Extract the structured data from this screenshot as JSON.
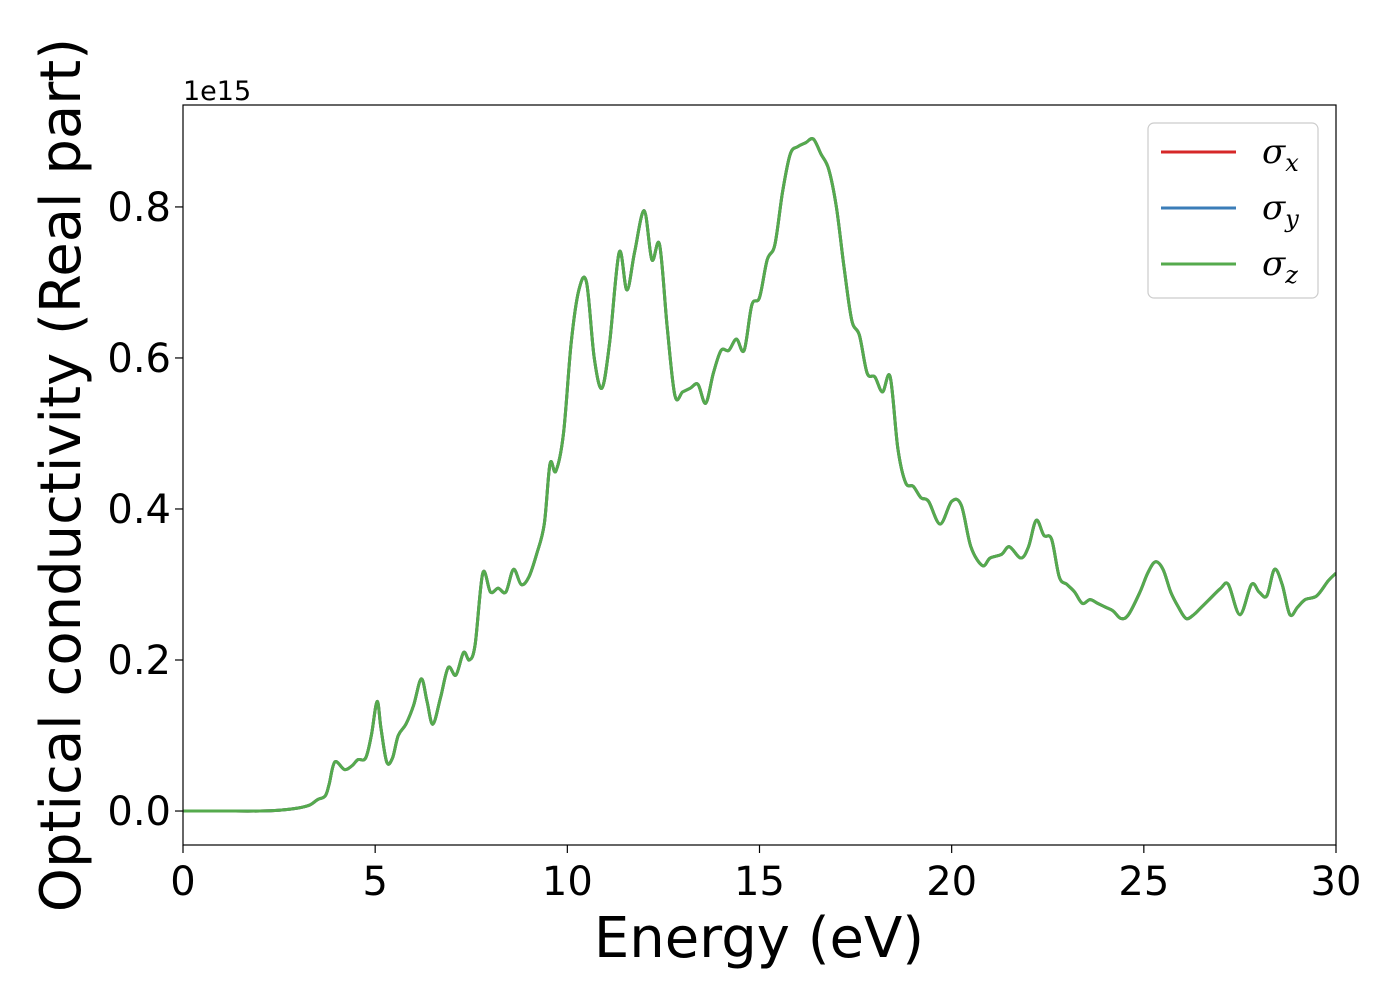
{
  "chart_data": {
    "type": "line",
    "title": "",
    "xlabel": "Energy (eV)",
    "ylabel": "Optical conductivity (Real part)",
    "y_offset_label": "1e15",
    "xlim": [
      0,
      30
    ],
    "ylim": [
      -0.045,
      0.935
    ],
    "xticks": [
      0,
      5,
      10,
      15,
      20,
      25,
      30
    ],
    "xtick_labels": [
      "0",
      "5",
      "10",
      "15",
      "20",
      "25",
      "30"
    ],
    "yticks": [
      0.0,
      0.2,
      0.4,
      0.6,
      0.8
    ],
    "ytick_labels": [
      "0.0",
      "0.2",
      "0.4",
      "0.6",
      "0.8"
    ],
    "grid": false,
    "legend_position": "top-right",
    "series": [
      {
        "name": "σ",
        "subscript": "x",
        "color": "#d62728",
        "points": [
          [
            0,
            0
          ],
          [
            1,
            0
          ],
          [
            2,
            0
          ],
          [
            2.5,
            0.001
          ],
          [
            3,
            0.004
          ],
          [
            3.3,
            0.008
          ],
          [
            3.5,
            0.015
          ],
          [
            3.7,
            0.02
          ],
          [
            3.8,
            0.035
          ],
          [
            3.95,
            0.065
          ],
          [
            4.2,
            0.055
          ],
          [
            4.4,
            0.06
          ],
          [
            4.55,
            0.068
          ],
          [
            4.75,
            0.07
          ],
          [
            4.9,
            0.1
          ],
          [
            5.05,
            0.145
          ],
          [
            5.15,
            0.11
          ],
          [
            5.3,
            0.065
          ],
          [
            5.45,
            0.07
          ],
          [
            5.6,
            0.1
          ],
          [
            5.8,
            0.115
          ],
          [
            6.0,
            0.14
          ],
          [
            6.2,
            0.175
          ],
          [
            6.35,
            0.145
          ],
          [
            6.5,
            0.115
          ],
          [
            6.7,
            0.15
          ],
          [
            6.9,
            0.19
          ],
          [
            7.1,
            0.18
          ],
          [
            7.3,
            0.21
          ],
          [
            7.45,
            0.2
          ],
          [
            7.6,
            0.22
          ],
          [
            7.8,
            0.315
          ],
          [
            8.0,
            0.29
          ],
          [
            8.2,
            0.295
          ],
          [
            8.4,
            0.29
          ],
          [
            8.6,
            0.32
          ],
          [
            8.8,
            0.3
          ],
          [
            9.0,
            0.31
          ],
          [
            9.2,
            0.34
          ],
          [
            9.4,
            0.38
          ],
          [
            9.55,
            0.46
          ],
          [
            9.7,
            0.45
          ],
          [
            9.9,
            0.5
          ],
          [
            10.1,
            0.62
          ],
          [
            10.3,
            0.69
          ],
          [
            10.5,
            0.7
          ],
          [
            10.7,
            0.6
          ],
          [
            10.9,
            0.56
          ],
          [
            11.1,
            0.62
          ],
          [
            11.35,
            0.74
          ],
          [
            11.55,
            0.69
          ],
          [
            11.75,
            0.74
          ],
          [
            12.0,
            0.795
          ],
          [
            12.2,
            0.73
          ],
          [
            12.4,
            0.75
          ],
          [
            12.6,
            0.64
          ],
          [
            12.8,
            0.55
          ],
          [
            13.0,
            0.555
          ],
          [
            13.2,
            0.56
          ],
          [
            13.4,
            0.565
          ],
          [
            13.6,
            0.54
          ],
          [
            13.8,
            0.58
          ],
          [
            14.0,
            0.61
          ],
          [
            14.2,
            0.61
          ],
          [
            14.4,
            0.625
          ],
          [
            14.6,
            0.61
          ],
          [
            14.8,
            0.67
          ],
          [
            15.0,
            0.68
          ],
          [
            15.2,
            0.73
          ],
          [
            15.4,
            0.75
          ],
          [
            15.6,
            0.82
          ],
          [
            15.8,
            0.87
          ],
          [
            16.0,
            0.88
          ],
          [
            16.2,
            0.885
          ],
          [
            16.4,
            0.89
          ],
          [
            16.6,
            0.87
          ],
          [
            16.8,
            0.85
          ],
          [
            17.0,
            0.8
          ],
          [
            17.2,
            0.72
          ],
          [
            17.4,
            0.65
          ],
          [
            17.6,
            0.63
          ],
          [
            17.8,
            0.58
          ],
          [
            18.0,
            0.575
          ],
          [
            18.2,
            0.555
          ],
          [
            18.4,
            0.575
          ],
          [
            18.6,
            0.48
          ],
          [
            18.8,
            0.435
          ],
          [
            19.0,
            0.43
          ],
          [
            19.2,
            0.415
          ],
          [
            19.4,
            0.41
          ],
          [
            19.7,
            0.38
          ],
          [
            20.0,
            0.41
          ],
          [
            20.25,
            0.405
          ],
          [
            20.5,
            0.35
          ],
          [
            20.8,
            0.325
          ],
          [
            21.0,
            0.335
          ],
          [
            21.3,
            0.34
          ],
          [
            21.5,
            0.35
          ],
          [
            21.8,
            0.335
          ],
          [
            22.0,
            0.35
          ],
          [
            22.2,
            0.385
          ],
          [
            22.4,
            0.365
          ],
          [
            22.6,
            0.36
          ],
          [
            22.8,
            0.31
          ],
          [
            23.0,
            0.3
          ],
          [
            23.2,
            0.29
          ],
          [
            23.4,
            0.275
          ],
          [
            23.6,
            0.28
          ],
          [
            23.8,
            0.275
          ],
          [
            24.0,
            0.27
          ],
          [
            24.2,
            0.265
          ],
          [
            24.4,
            0.255
          ],
          [
            24.6,
            0.26
          ],
          [
            24.9,
            0.29
          ],
          [
            25.1,
            0.315
          ],
          [
            25.3,
            0.33
          ],
          [
            25.5,
            0.32
          ],
          [
            25.7,
            0.29
          ],
          [
            25.9,
            0.27
          ],
          [
            26.1,
            0.255
          ],
          [
            26.3,
            0.26
          ],
          [
            26.5,
            0.27
          ],
          [
            26.7,
            0.28
          ],
          [
            27.0,
            0.295
          ],
          [
            27.2,
            0.3
          ],
          [
            27.5,
            0.26
          ],
          [
            27.8,
            0.3
          ],
          [
            28.0,
            0.29
          ],
          [
            28.2,
            0.285
          ],
          [
            28.4,
            0.32
          ],
          [
            28.6,
            0.3
          ],
          [
            28.8,
            0.26
          ],
          [
            29.0,
            0.27
          ],
          [
            29.2,
            0.28
          ],
          [
            29.5,
            0.285
          ],
          [
            29.8,
            0.305
          ],
          [
            30,
            0.315
          ]
        ]
      },
      {
        "name": "σ",
        "subscript": "y",
        "color": "#3b7db8",
        "points": "same-as-x"
      },
      {
        "name": "σ",
        "subscript": "z",
        "color": "#55aa4d",
        "points": "same-as-x"
      }
    ]
  }
}
